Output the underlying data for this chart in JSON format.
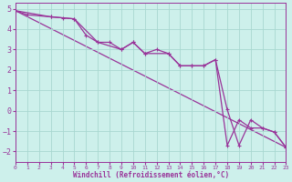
{
  "xlabel": "Windchill (Refroidissement éolien,°C)",
  "bg_color": "#cdf0eb",
  "line_color": "#993399",
  "grid_color": "#a8d8d0",
  "series1_x": [
    0,
    1,
    3,
    4,
    5,
    6,
    7,
    8,
    9,
    10,
    11,
    12,
    13,
    14,
    15,
    16,
    17,
    18,
    19,
    20,
    21,
    22,
    23
  ],
  "series1_y": [
    4.9,
    4.7,
    4.6,
    4.55,
    4.5,
    3.7,
    3.35,
    3.35,
    3.0,
    3.35,
    2.8,
    3.0,
    2.8,
    2.2,
    2.2,
    2.2,
    2.5,
    0.05,
    -1.7,
    -0.45,
    -0.85,
    -1.05,
    -1.8
  ],
  "series2_x": [
    0,
    3,
    5,
    7,
    9,
    10,
    11,
    13,
    14,
    15,
    16,
    17,
    18,
    19,
    20,
    21,
    22,
    23
  ],
  "series2_y": [
    4.9,
    4.6,
    4.5,
    3.35,
    3.0,
    3.35,
    2.8,
    2.8,
    2.2,
    2.2,
    2.2,
    2.5,
    -1.7,
    -0.45,
    -0.85,
    -0.85,
    -1.05,
    -1.8
  ],
  "trend_x": [
    0,
    23
  ],
  "trend_y": [
    4.9,
    -1.8
  ],
  "xlim": [
    0,
    23
  ],
  "ylim": [
    -2.5,
    5.3
  ],
  "xticks": [
    0,
    1,
    2,
    3,
    4,
    5,
    6,
    7,
    8,
    9,
    10,
    11,
    12,
    13,
    14,
    15,
    16,
    17,
    18,
    19,
    20,
    21,
    22,
    23
  ],
  "yticks": [
    -2,
    -1,
    0,
    1,
    2,
    3,
    4,
    5
  ],
  "marker": "+"
}
